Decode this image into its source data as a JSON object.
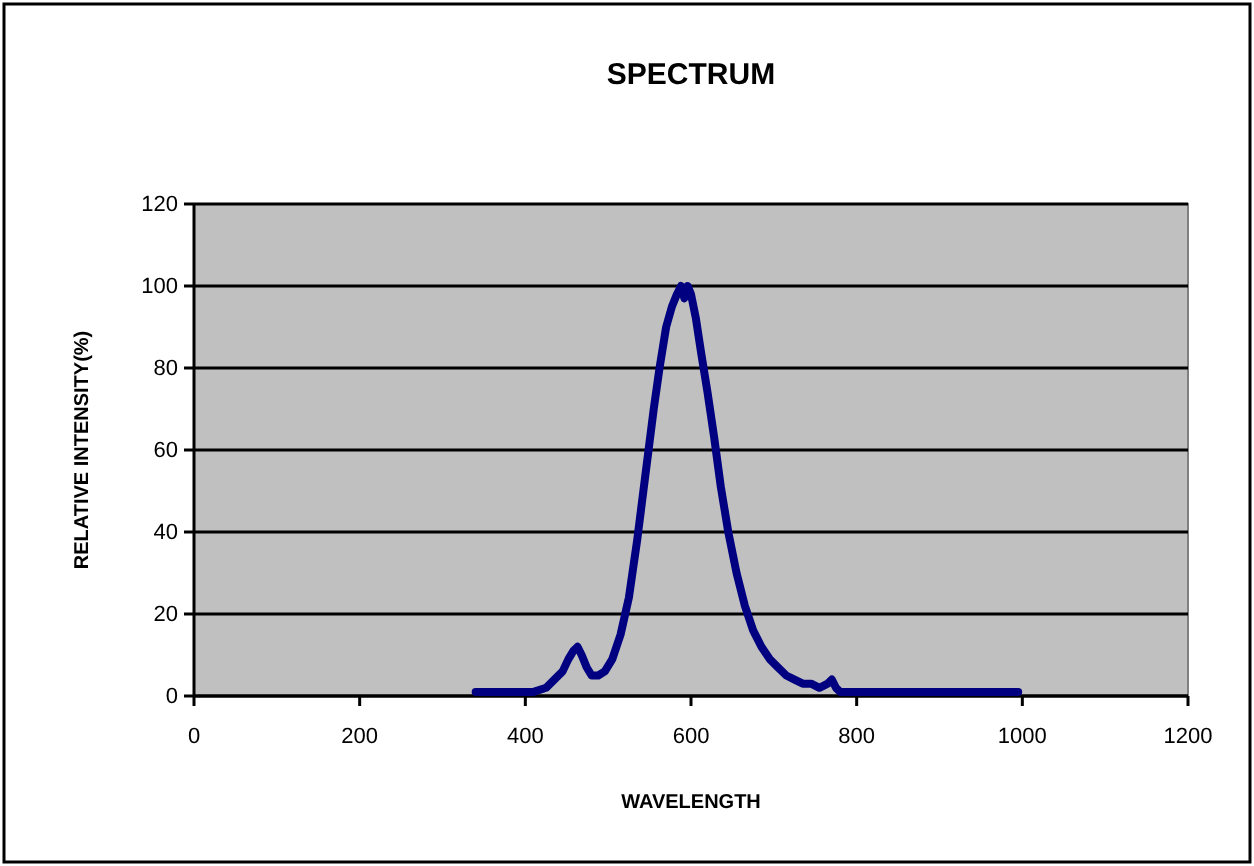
{
  "chart_data": {
    "type": "line",
    "title": "SPECTRUM",
    "xlabel": "WAVELENGTH",
    "ylabel": "RELATIVE INTENSITY(%)",
    "xlim": [
      0,
      1200
    ],
    "xticks": [
      0,
      200,
      400,
      600,
      800,
      1000,
      1200
    ],
    "ylim": [
      0,
      120
    ],
    "yticks": [
      0,
      20,
      40,
      60,
      80,
      100,
      120
    ],
    "grid": "y",
    "marker": "none",
    "line_style": "solid",
    "series": [
      {
        "color": "#000080",
        "x": [
          340,
          380,
          410,
          425,
          435,
          445,
          452,
          458,
          463,
          468,
          474,
          480,
          488,
          496,
          505,
          515,
          525,
          535,
          545,
          555,
          562,
          570,
          577,
          583,
          588,
          592,
          596,
          600,
          606,
          612,
          620,
          628,
          636,
          645,
          655,
          665,
          675,
          685,
          695,
          705,
          715,
          725,
          735,
          745,
          755,
          765,
          770,
          775,
          780,
          800,
          850,
          900,
          950,
          995
        ],
        "values": [
          1,
          1,
          1,
          2,
          4,
          6,
          9,
          11,
          12,
          10,
          7,
          5,
          5,
          6,
          9,
          15,
          24,
          38,
          54,
          70,
          80,
          90,
          95,
          98,
          100,
          97,
          100,
          98,
          92,
          84,
          74,
          63,
          51,
          40,
          30,
          22,
          16,
          12,
          9,
          7,
          5,
          4,
          3,
          3,
          2,
          3,
          4,
          2,
          1,
          1,
          1,
          1,
          1,
          1
        ]
      }
    ]
  }
}
